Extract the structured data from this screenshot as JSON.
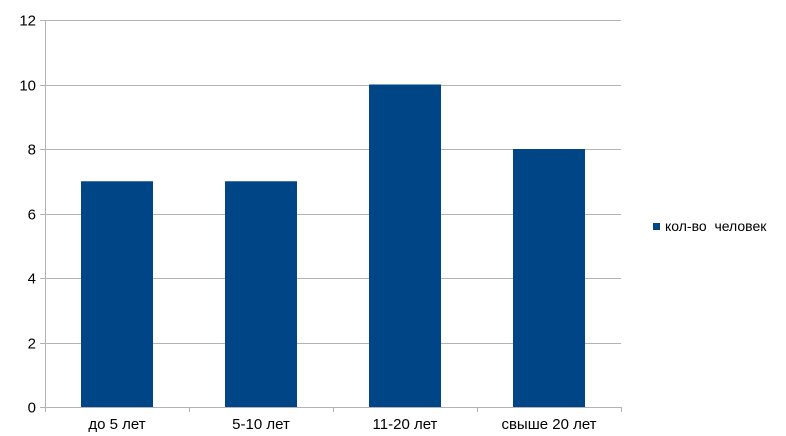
{
  "chart_data": {
    "type": "bar",
    "categories": [
      "до 5 лет",
      "5-10 лет",
      "11-20 лет",
      "свыше 20 лет"
    ],
    "series": [
      {
        "name": "кол-во  человек",
        "values": [
          7,
          7,
          10,
          8
        ],
        "color": "#004586"
      }
    ],
    "ylim": [
      0,
      12
    ],
    "yticks": [
      0,
      2,
      4,
      6,
      8,
      10,
      12
    ],
    "grid": true,
    "legend": "right",
    "gridline_color": "#b3b3b3",
    "axis_color": "#b3b3b3"
  }
}
